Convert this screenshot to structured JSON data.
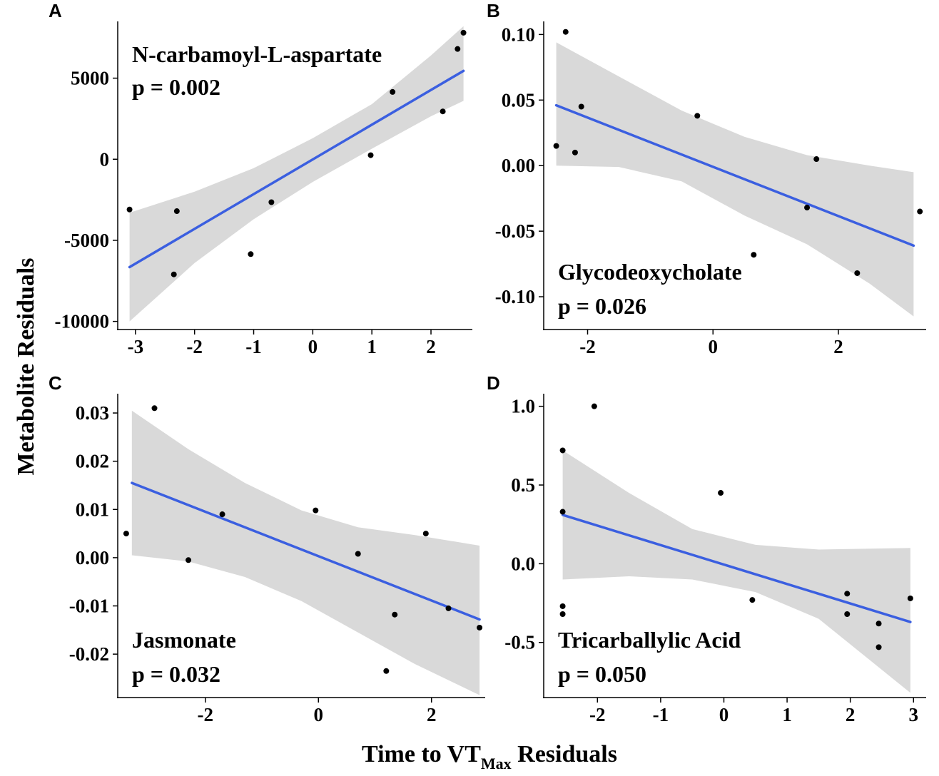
{
  "figure": {
    "ylabel": "Metabolite Residuals",
    "xlabel_main": "Time to VT",
    "xlabel_sub": "Max",
    "xlabel_tail": " Residuals"
  },
  "colors": {
    "line": "#3b5fe0",
    "band": "#d9d9d9",
    "point": "#000000",
    "axis": "#000000"
  },
  "chart_data": [
    {
      "letter": "A",
      "type": "scatter",
      "title": "N-carbamoyl-L-aspartate",
      "pvalue": "p = 0.002",
      "annotation_position": "top-left",
      "xlim": [
        -3.3,
        2.7
      ],
      "ylim": [
        -10500,
        8500
      ],
      "xticks": [
        -3,
        -2,
        -1,
        0,
        1,
        2
      ],
      "xtick_labels": [
        "-3",
        "-2",
        "-1",
        "0",
        "1",
        "2"
      ],
      "yticks": [
        -10000,
        -5000,
        0,
        5000
      ],
      "ytick_labels": [
        "-10000",
        "-5000",
        "0",
        "5000"
      ],
      "points": [
        [
          -3.1,
          -3100
        ],
        [
          -2.3,
          -3200
        ],
        [
          -2.35,
          -7100
        ],
        [
          -1.05,
          -5850
        ],
        [
          -0.7,
          -2650
        ],
        [
          0.98,
          250
        ],
        [
          1.35,
          4150
        ],
        [
          2.2,
          2950
        ],
        [
          2.45,
          6800
        ],
        [
          2.55,
          7800
        ]
      ],
      "fit": {
        "x": [
          -3.1,
          2.55
        ],
        "y": [
          -6650,
          5450
        ]
      },
      "band": {
        "x": [
          -3.1,
          -2.0,
          -1.0,
          0.0,
          1.0,
          2.0,
          2.55
        ],
        "lower": [
          -10000,
          -6400,
          -3700,
          -1400,
          650,
          2650,
          3600
        ],
        "upper": [
          -3300,
          -2000,
          -550,
          1300,
          3400,
          6400,
          8200
        ]
      }
    },
    {
      "letter": "B",
      "type": "scatter",
      "title": "Glycodeoxycholate",
      "pvalue": "p = 0.026",
      "annotation_position": "bottom-left",
      "xlim": [
        -2.7,
        3.4
      ],
      "ylim": [
        -0.125,
        0.11
      ],
      "xticks": [
        -2,
        0,
        2
      ],
      "xtick_labels": [
        "-2",
        "0",
        "2"
      ],
      "yticks": [
        -0.1,
        -0.05,
        0.0,
        0.05,
        0.1
      ],
      "ytick_labels": [
        "-0.10",
        "-0.05",
        "0.00",
        "0.05",
        "0.10"
      ],
      "points": [
        [
          -2.5,
          0.015
        ],
        [
          -2.35,
          0.102
        ],
        [
          -2.2,
          0.01
        ],
        [
          -2.1,
          0.045
        ],
        [
          -0.25,
          0.038
        ],
        [
          0.65,
          -0.068
        ],
        [
          1.5,
          -0.032
        ],
        [
          1.65,
          0.005
        ],
        [
          2.3,
          -0.082
        ],
        [
          3.3,
          -0.035
        ]
      ],
      "fit": {
        "x": [
          -2.5,
          3.2
        ],
        "y": [
          0.046,
          -0.061
        ]
      },
      "band": {
        "x": [
          -2.5,
          -1.5,
          -0.5,
          0.5,
          1.5,
          2.5,
          3.2
        ],
        "lower": [
          0.0,
          -0.001,
          -0.012,
          -0.038,
          -0.06,
          -0.09,
          -0.115
        ],
        "upper": [
          0.094,
          0.068,
          0.042,
          0.022,
          0.008,
          0.0,
          -0.005
        ]
      }
    },
    {
      "letter": "C",
      "type": "scatter",
      "title": "Jasmonate",
      "pvalue": "p = 0.032",
      "annotation_position": "bottom-left",
      "xlim": [
        -3.55,
        2.95
      ],
      "ylim": [
        -0.029,
        0.034
      ],
      "xticks": [
        -2,
        0,
        2
      ],
      "xtick_labels": [
        "-2",
        "0",
        "2"
      ],
      "yticks": [
        -0.02,
        -0.01,
        0.0,
        0.01,
        0.02,
        0.03
      ],
      "ytick_labels": [
        "-0.02",
        "-0.01",
        "0.00",
        "0.01",
        "0.02",
        "0.03"
      ],
      "points": [
        [
          -3.4,
          0.005
        ],
        [
          -2.9,
          0.031
        ],
        [
          -2.3,
          -0.0005
        ],
        [
          -1.7,
          0.009
        ],
        [
          -0.05,
          0.0098
        ],
        [
          0.7,
          0.0008
        ],
        [
          1.2,
          -0.0235
        ],
        [
          1.35,
          -0.0118
        ],
        [
          1.9,
          0.005
        ],
        [
          2.3,
          -0.0105
        ],
        [
          2.85,
          -0.0145
        ]
      ],
      "fit": {
        "x": [
          -3.3,
          2.85
        ],
        "y": [
          0.0155,
          -0.0128
        ]
      },
      "band": {
        "x": [
          -3.3,
          -2.3,
          -1.3,
          -0.3,
          0.7,
          1.7,
          2.85
        ],
        "lower": [
          0.0005,
          -0.0008,
          -0.004,
          -0.009,
          -0.0155,
          -0.022,
          -0.0285
        ],
        "upper": [
          0.0305,
          0.0225,
          0.0155,
          0.0098,
          0.0063,
          0.0047,
          0.0025
        ]
      }
    },
    {
      "letter": "D",
      "type": "scatter",
      "title": "Tricarballylic Acid",
      "pvalue": "p = 0.050",
      "annotation_position": "bottom-left",
      "xlim": [
        -2.85,
        3.2
      ],
      "ylim": [
        -0.85,
        1.08
      ],
      "xticks": [
        -2,
        -1,
        0,
        1,
        2,
        3
      ],
      "xtick_labels": [
        "-2",
        "-1",
        "0",
        "1",
        "2",
        "3"
      ],
      "yticks": [
        -0.5,
        0.0,
        0.5,
        1.0
      ],
      "ytick_labels": [
        "-0.5",
        "0.0",
        "0.5",
        "1.0"
      ],
      "points": [
        [
          -2.55,
          0.72
        ],
        [
          -2.55,
          0.33
        ],
        [
          -2.55,
          -0.27
        ],
        [
          -2.55,
          -0.32
        ],
        [
          -2.05,
          1.0
        ],
        [
          -0.05,
          0.45
        ],
        [
          0.45,
          -0.23
        ],
        [
          1.95,
          -0.19
        ],
        [
          1.95,
          -0.32
        ],
        [
          2.45,
          -0.38
        ],
        [
          2.45,
          -0.53
        ],
        [
          2.95,
          -0.22
        ]
      ],
      "fit": {
        "x": [
          -2.55,
          2.95
        ],
        "y": [
          0.31,
          -0.37
        ]
      },
      "band": {
        "x": [
          -2.55,
          -1.5,
          -0.5,
          0.5,
          1.5,
          2.95
        ],
        "lower": [
          -0.1,
          -0.08,
          -0.1,
          -0.18,
          -0.35,
          -0.82
        ],
        "upper": [
          0.72,
          0.45,
          0.22,
          0.12,
          0.09,
          0.1
        ]
      }
    }
  ]
}
